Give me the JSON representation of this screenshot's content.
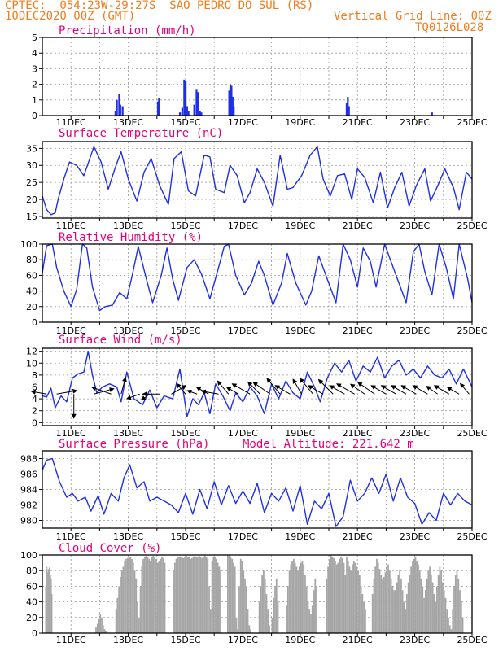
{
  "header": {
    "line1": "CPTEC:  054:23W-29:27S  SAO PEDRO DO SUL (RS)",
    "line2": "10DEC2020 00Z (GMT)",
    "grid_note": "Vertical Grid Line: 00Z",
    "code": "TQ0126L028"
  },
  "colors": {
    "header": "#f07c1c",
    "title": "#e4007c",
    "line": "#1f2fe8",
    "cloud": "#a6a6a6",
    "wind_arrow": "#000000"
  },
  "x_axis": {
    "start_day": 10,
    "end_day": 25,
    "labels": [
      "11DEC",
      "13DEC",
      "15DEC",
      "17DEC",
      "19DEC",
      "21DEC",
      "23DEC",
      "25DEC"
    ]
  },
  "chart_data": [
    {
      "type": "bar",
      "title": "Precipitation (mm/h)",
      "ylim": [
        0,
        5
      ],
      "yticks": [
        0,
        1,
        2,
        3,
        4,
        5
      ],
      "x": [
        12.55,
        12.6,
        12.68,
        12.72,
        12.8,
        14.03,
        14.07,
        14.8,
        14.88,
        14.95,
        15.0,
        15.05,
        15.1,
        15.3,
        15.38,
        15.42,
        15.5,
        15.55,
        16.52,
        16.56,
        16.6,
        16.64,
        16.68,
        20.62,
        20.66,
        20.7,
        23.6
      ],
      "values": [
        0.3,
        1.0,
        1.4,
        0.7,
        0.6,
        0.9,
        1.1,
        0.2,
        0.5,
        2.3,
        2.2,
        0.6,
        0.3,
        0.7,
        1.7,
        1.5,
        0.3,
        0.2,
        1.6,
        2.0,
        1.9,
        1.2,
        0.6,
        0.8,
        1.2,
        0.6,
        0.2
      ]
    },
    {
      "type": "line",
      "title": "Surface Temperature (nC)",
      "ylim": [
        14.5,
        37
      ],
      "yticks": [
        15,
        20,
        25,
        30,
        35
      ],
      "x": [
        10,
        10.15,
        10.3,
        10.45,
        10.55,
        10.75,
        10.95,
        11.2,
        11.45,
        11.8,
        12.05,
        12.3,
        12.55,
        12.75,
        13.0,
        13.3,
        13.55,
        13.8,
        14.1,
        14.4,
        14.6,
        14.85,
        15.1,
        15.35,
        15.65,
        15.85,
        16.05,
        16.35,
        16.55,
        16.8,
        17.05,
        17.25,
        17.5,
        17.75,
        18.05,
        18.3,
        18.55,
        18.75,
        19.05,
        19.35,
        19.6,
        19.8,
        20.05,
        20.3,
        20.55,
        20.8,
        21.0,
        21.25,
        21.55,
        21.8,
        22.05,
        22.3,
        22.55,
        22.8,
        23.05,
        23.35,
        23.55,
        23.8,
        24.05,
        24.35,
        24.55,
        24.8,
        25.0
      ],
      "values": [
        21,
        17,
        15.5,
        16,
        20,
        26,
        31,
        30,
        27,
        35.5,
        31,
        23,
        29.5,
        34,
        26,
        19.5,
        28,
        32,
        24,
        18.5,
        32,
        34,
        22.5,
        21,
        33,
        32.5,
        23,
        22,
        30,
        27,
        19,
        22,
        29,
        25,
        18,
        33,
        23,
        23.5,
        27,
        33,
        35.5,
        26,
        21,
        27,
        27.5,
        20,
        29,
        26.5,
        19,
        28,
        17.5,
        23.5,
        28,
        18,
        24,
        29,
        19.5,
        24,
        29,
        23.5,
        17,
        28,
        26
      ]
    },
    {
      "type": "line",
      "title": "Relative Humidity (%)",
      "ylim": [
        0,
        100
      ],
      "yticks": [
        0,
        20,
        40,
        60,
        80,
        100
      ],
      "x": [
        10,
        10.15,
        10.35,
        10.5,
        10.75,
        11.0,
        11.2,
        11.4,
        11.55,
        11.75,
        12.0,
        12.2,
        12.45,
        12.7,
        12.95,
        13.15,
        13.35,
        13.6,
        13.85,
        14.15,
        14.35,
        14.55,
        14.75,
        15.05,
        15.3,
        15.55,
        15.85,
        16.15,
        16.35,
        16.5,
        16.75,
        17.05,
        17.3,
        17.55,
        17.75,
        18.05,
        18.35,
        18.55,
        18.85,
        19.2,
        19.4,
        19.65,
        19.95,
        20.25,
        20.5,
        20.75,
        21.0,
        21.2,
        21.45,
        21.65,
        21.95,
        22.2,
        22.45,
        22.7,
        22.95,
        23.15,
        23.35,
        23.6,
        23.85,
        24.1,
        24.35,
        24.55,
        24.85,
        25.0
      ],
      "values": [
        63,
        98,
        100,
        70,
        40,
        20,
        42,
        100,
        95,
        45,
        15,
        20,
        22,
        38,
        30,
        62,
        97,
        60,
        25,
        60,
        95,
        55,
        28,
        70,
        80,
        62,
        30,
        70,
        97,
        100,
        60,
        35,
        50,
        78,
        60,
        22,
        50,
        88,
        50,
        22,
        40,
        85,
        55,
        25,
        100,
        80,
        45,
        95,
        78,
        45,
        100,
        75,
        50,
        25,
        90,
        100,
        65,
        35,
        100,
        70,
        30,
        100,
        55,
        25
      ]
    },
    {
      "type": "line",
      "title": "Surface Wind (m/s)",
      "ylim": [
        -0.5,
        12.5
      ],
      "yticks": [
        0,
        2,
        4,
        6,
        8,
        10,
        12
      ],
      "x": [
        10,
        10.15,
        10.3,
        10.45,
        10.65,
        10.85,
        11.05,
        11.25,
        11.45,
        11.6,
        11.75,
        11.9,
        12.1,
        12.35,
        12.6,
        12.75,
        12.95,
        13.2,
        13.5,
        13.75,
        14.0,
        14.25,
        14.55,
        14.8,
        15.05,
        15.25,
        15.45,
        15.65,
        15.85,
        16.05,
        16.3,
        16.55,
        16.75,
        17.0,
        17.25,
        17.5,
        17.75,
        18.0,
        18.25,
        18.5,
        18.75,
        19.0,
        19.25,
        19.5,
        19.7,
        19.95,
        20.2,
        20.45,
        20.7,
        20.95,
        21.2,
        21.45,
        21.7,
        21.95,
        22.2,
        22.45,
        22.7,
        22.95,
        23.2,
        23.45,
        23.7,
        23.95,
        24.2,
        24.45,
        24.7,
        25.0
      ],
      "values": [
        4.5,
        4.3,
        5.8,
        2.5,
        4.5,
        3.5,
        7.5,
        8.2,
        8.5,
        12.0,
        8.0,
        5.0,
        6.0,
        6.5,
        6.0,
        3.5,
        8.5,
        4.0,
        3.0,
        5.5,
        2.5,
        4.5,
        4.0,
        9.0,
        1.0,
        4.0,
        3.0,
        5.0,
        1.5,
        6.5,
        4.5,
        2.0,
        5.0,
        3.5,
        6.0,
        4.5,
        1.5,
        6.5,
        4.0,
        7.0,
        5.0,
        4.0,
        8.5,
        6.0,
        3.5,
        7.5,
        10.0,
        8.5,
        10.5,
        7.0,
        9.5,
        8.5,
        11.0,
        7.5,
        9.5,
        10.5,
        8.0,
        9.0,
        7.5,
        9.5,
        8.0,
        7.5,
        9.0,
        6.5,
        9.0,
        6.0
      ]
    },
    {
      "type": "line",
      "title": "Surface Pressure (hPa)",
      "annotation": "Model Altitude: 221.642 m",
      "ylim": [
        979,
        989
      ],
      "yticks": [
        980,
        982,
        984,
        986,
        988
      ],
      "x": [
        10,
        10.15,
        10.35,
        10.6,
        10.85,
        11.05,
        11.25,
        11.5,
        11.7,
        11.95,
        12.15,
        12.4,
        12.65,
        12.85,
        13.05,
        13.3,
        13.55,
        13.75,
        14.0,
        14.25,
        14.5,
        14.75,
        15.0,
        15.25,
        15.5,
        15.75,
        16.0,
        16.25,
        16.5,
        16.75,
        17.0,
        17.25,
        17.5,
        17.75,
        18.0,
        18.25,
        18.5,
        18.75,
        19.0,
        19.25,
        19.5,
        19.75,
        20.0,
        20.25,
        20.5,
        20.75,
        21.0,
        21.25,
        21.5,
        21.75,
        22.0,
        22.25,
        22.5,
        22.75,
        23.0,
        23.25,
        23.5,
        23.75,
        24.0,
        24.25,
        24.5,
        24.75,
        25.0
      ],
      "values": [
        986.5,
        987.8,
        988,
        985,
        983,
        983.5,
        982.5,
        983,
        981.2,
        983.2,
        980.8,
        983.5,
        982.5,
        985.5,
        987.2,
        984.2,
        985,
        982.5,
        983,
        982.5,
        982,
        981,
        983.5,
        980.8,
        984,
        981.5,
        985,
        982,
        984.5,
        982.2,
        983.8,
        982.2,
        984.8,
        981,
        983.5,
        982.5,
        984.2,
        981.2,
        984.5,
        979.5,
        982.5,
        981.5,
        983.5,
        979.2,
        980.5,
        985.2,
        982.5,
        983.5,
        985.5,
        983.5,
        986,
        982.5,
        985.5,
        983,
        982.2,
        979.5,
        981,
        980,
        983.5,
        982,
        983.5,
        982.5,
        982
      ]
    },
    {
      "type": "bar",
      "title": "Cloud Cover (%)",
      "ylim": [
        0,
        100
      ],
      "yticks": [
        0,
        20,
        40,
        60,
        80,
        100
      ],
      "segments": [
        {
          "x0": 10.1,
          "x1": 10.35,
          "values": [
            60,
            82,
            85,
            78,
            82,
            84,
            80,
            75,
            70,
            50
          ]
        },
        {
          "x0": 11.85,
          "x1": 12.25,
          "values": [
            8,
            12,
            18,
            25,
            20,
            10,
            5,
            3
          ]
        },
        {
          "x0": 12.55,
          "x1": 13.25,
          "values": [
            30,
            45,
            60,
            72,
            80,
            85,
            92,
            95,
            96,
            98,
            97,
            95,
            90,
            80
          ]
        },
        {
          "x0": 13.25,
          "x1": 14.3,
          "values": [
            70,
            40,
            20,
            60,
            85,
            95,
            98,
            99,
            97,
            95,
            92,
            97,
            99,
            98,
            95,
            90,
            92,
            95,
            98,
            96,
            90
          ]
        },
        {
          "x0": 14.55,
          "x1": 16.25,
          "values": [
            80,
            90,
            95,
            97,
            98,
            98,
            97,
            96,
            98,
            99,
            98,
            97,
            95,
            96,
            98,
            99,
            97,
            98,
            99,
            97,
            96,
            98,
            99,
            98,
            95,
            60,
            30,
            92,
            98,
            97,
            95,
            90,
            85,
            80
          ]
        },
        {
          "x0": 16.45,
          "x1": 17.3,
          "values": [
            100,
            100,
            98,
            95,
            90,
            85,
            20,
            5,
            60,
            95,
            92,
            80,
            70,
            60,
            30,
            10,
            5
          ]
        },
        {
          "x0": 17.55,
          "x1": 17.95,
          "values": [
            40,
            60,
            75,
            80,
            70,
            50,
            30,
            10
          ]
        },
        {
          "x0": 18.0,
          "x1": 18.25,
          "values": [
            20,
            45,
            60,
            70,
            40
          ]
        },
        {
          "x0": 18.5,
          "x1": 19.6,
          "values": [
            35,
            60,
            80,
            88,
            92,
            95,
            90,
            85,
            80,
            85,
            90,
            92,
            88,
            75,
            60,
            40,
            30,
            25,
            35,
            55,
            70,
            60
          ]
        },
        {
          "x0": 19.9,
          "x1": 20.6,
          "values": [
            70,
            85,
            95,
            100,
            98,
            96,
            92,
            88,
            90,
            95,
            98,
            96,
            90,
            75
          ]
        },
        {
          "x0": 20.6,
          "x1": 21.3,
          "values": [
            98,
            92,
            85,
            80,
            88,
            92,
            90,
            85,
            80,
            75,
            60,
            50,
            40,
            30
          ]
        },
        {
          "x0": 21.5,
          "x1": 22.3,
          "values": [
            50,
            70,
            85,
            95,
            90,
            82,
            75,
            70,
            72,
            78,
            85,
            88,
            80,
            70,
            60,
            55
          ]
        },
        {
          "x0": 22.3,
          "x1": 23.3,
          "values": [
            55,
            65,
            75,
            80,
            70,
            55,
            40,
            30,
            50,
            65,
            75,
            85,
            92,
            95,
            98,
            92,
            88,
            80,
            70,
            60
          ]
        },
        {
          "x0": 23.3,
          "x1": 24.3,
          "values": [
            45,
            55,
            70,
            80,
            85,
            75,
            65,
            50,
            40,
            60,
            75,
            85,
            80,
            65,
            55,
            45,
            30,
            20,
            10,
            5
          ]
        },
        {
          "x0": 24.3,
          "x1": 24.7,
          "values": [
            30,
            60,
            75,
            80,
            70,
            55,
            40,
            20
          ]
        }
      ]
    }
  ],
  "wind_arrows": {
    "note": "direction in degrees (0=up, clockwise), length in m/s",
    "items": [
      {
        "day": 10.15,
        "speed": 4.5,
        "dir": 280
      },
      {
        "day": 10.5,
        "speed": 6,
        "dir": 80
      },
      {
        "day": 11.1,
        "speed": 7,
        "dir": 180
      },
      {
        "day": 11.8,
        "speed": 6,
        "dir": 75
      },
      {
        "day": 12.4,
        "speed": 6,
        "dir": 290
      },
      {
        "day": 12.75,
        "speed": 5,
        "dir": 15
      },
      {
        "day": 13.4,
        "speed": 4,
        "dir": 250
      },
      {
        "day": 13.75,
        "speed": 3,
        "dir": 235
      },
      {
        "day": 14.1,
        "speed": 5,
        "dir": 270
      },
      {
        "day": 14.5,
        "speed": 5,
        "dir": 60
      },
      {
        "day": 15.0,
        "speed": 4,
        "dir": 320
      },
      {
        "day": 15.4,
        "speed": 3,
        "dir": 290
      },
      {
        "day": 15.8,
        "speed": 4,
        "dir": 300
      },
      {
        "day": 16.15,
        "speed": 5,
        "dir": 280
      },
      {
        "day": 16.5,
        "speed": 5,
        "dir": 320
      },
      {
        "day": 16.85,
        "speed": 4,
        "dir": 300
      },
      {
        "day": 17.25,
        "speed": 6,
        "dir": 300
      },
      {
        "day": 17.6,
        "speed": 5,
        "dir": 315
      },
      {
        "day": 17.95,
        "speed": 6,
        "dir": 305
      },
      {
        "day": 18.3,
        "speed": 6,
        "dir": 320
      },
      {
        "day": 18.65,
        "speed": 5,
        "dir": 300
      },
      {
        "day": 19.05,
        "speed": 5,
        "dir": 330
      },
      {
        "day": 19.45,
        "speed": 6,
        "dir": 320
      },
      {
        "day": 19.8,
        "speed": 5,
        "dir": 300
      },
      {
        "day": 20.15,
        "speed": 6,
        "dir": 315
      },
      {
        "day": 20.55,
        "speed": 5,
        "dir": 300
      },
      {
        "day": 20.9,
        "speed": 6,
        "dir": 300
      },
      {
        "day": 21.25,
        "speed": 5,
        "dir": 305
      },
      {
        "day": 21.6,
        "speed": 6,
        "dir": 305
      },
      {
        "day": 22.0,
        "speed": 5,
        "dir": 300
      },
      {
        "day": 22.35,
        "speed": 5,
        "dir": 300
      },
      {
        "day": 22.7,
        "speed": 5,
        "dir": 300
      },
      {
        "day": 23.05,
        "speed": 5,
        "dir": 300
      },
      {
        "day": 23.45,
        "speed": 5,
        "dir": 300
      },
      {
        "day": 23.8,
        "speed": 4,
        "dir": 305
      },
      {
        "day": 24.2,
        "speed": 5,
        "dir": 300
      },
      {
        "day": 24.55,
        "speed": 4,
        "dir": 300
      },
      {
        "day": 24.9,
        "speed": 4,
        "dir": 320
      }
    ]
  }
}
